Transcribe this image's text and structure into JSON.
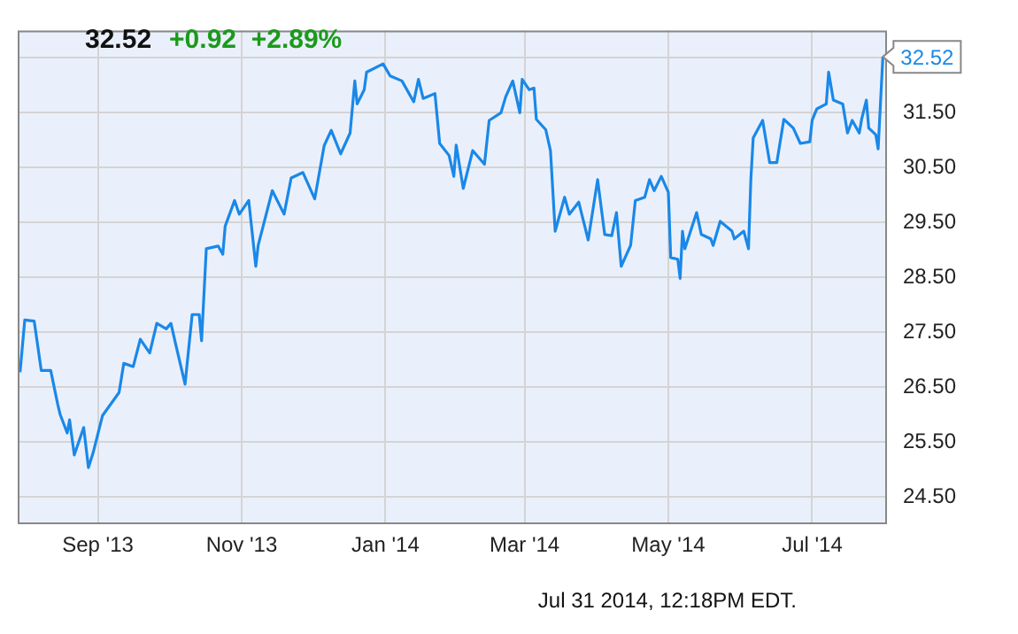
{
  "chart_data": {
    "type": "line",
    "title": "32.52",
    "subtitle": "+0.92  +2.89%",
    "x": [
      "2013-07-30",
      "2013-08-01",
      "2013-08-05",
      "2013-08-08",
      "2013-08-12",
      "2013-08-15",
      "2013-08-16",
      "2013-08-19",
      "2013-08-20",
      "2013-08-22",
      "2013-08-26",
      "2013-08-28",
      "2013-08-30",
      "2013-09-03",
      "2013-09-10",
      "2013-09-12",
      "2013-09-16",
      "2013-09-19",
      "2013-09-23",
      "2013-09-26",
      "2013-09-30",
      "2013-10-02",
      "2013-10-04",
      "2013-10-08",
      "2013-10-11",
      "2013-10-14",
      "2013-10-15",
      "2013-10-17",
      "2013-10-22",
      "2013-10-24",
      "2013-10-25",
      "2013-10-29",
      "2013-10-31",
      "2013-11-04",
      "2013-11-07",
      "2013-11-08",
      "2013-11-14",
      "2013-11-19",
      "2013-11-22",
      "2013-11-27",
      "2013-12-02",
      "2013-12-06",
      "2013-12-09",
      "2013-12-13",
      "2013-12-17",
      "2013-12-19",
      "2013-12-20",
      "2013-12-23",
      "2013-12-24",
      "2013-12-31",
      "2014-01-03",
      "2014-01-08",
      "2014-01-13",
      "2014-01-15",
      "2014-01-17",
      "2014-01-22",
      "2014-01-24",
      "2014-01-28",
      "2014-01-30",
      "2014-01-31",
      "2014-02-03",
      "2014-02-07",
      "2014-02-12",
      "2014-02-14",
      "2014-02-19",
      "2014-02-21",
      "2014-02-24",
      "2014-02-27",
      "2014-02-28",
      "2014-03-03",
      "2014-03-05",
      "2014-03-06",
      "2014-03-10",
      "2014-03-12",
      "2014-03-14",
      "2014-03-18",
      "2014-03-20",
      "2014-03-24",
      "2014-03-28",
      "2014-04-01",
      "2014-04-04",
      "2014-04-07",
      "2014-04-09",
      "2014-04-11",
      "2014-04-15",
      "2014-04-17",
      "2014-04-21",
      "2014-04-23",
      "2014-04-25",
      "2014-04-28",
      "2014-05-01",
      "2014-05-02",
      "2014-05-05",
      "2014-05-06",
      "2014-05-07",
      "2014-05-08",
      "2014-05-13",
      "2014-05-15",
      "2014-05-19",
      "2014-05-20",
      "2014-05-23",
      "2014-05-28",
      "2014-05-29",
      "2014-06-02",
      "2014-06-04",
      "2014-06-05",
      "2014-06-06",
      "2014-06-10",
      "2014-06-13",
      "2014-06-16",
      "2014-06-19",
      "2014-06-23",
      "2014-06-26",
      "2014-06-30",
      "2014-07-01",
      "2014-07-03",
      "2014-07-07",
      "2014-07-08",
      "2014-07-10",
      "2014-07-14",
      "2014-07-16",
      "2014-07-18",
      "2014-07-21",
      "2014-07-22",
      "2014-07-24",
      "2014-07-25",
      "2014-07-28",
      "2014-07-29",
      "2014-07-31"
    ],
    "series": [
      {
        "color": "#1a88e8",
        "values": [
          26.77,
          27.72,
          27.7,
          26.8,
          26.8,
          26.18,
          26.0,
          25.66,
          25.9,
          25.26,
          25.76,
          25.03,
          25.3,
          25.98,
          26.4,
          26.93,
          26.87,
          27.37,
          27.12,
          27.66,
          27.56,
          27.66,
          27.28,
          26.55,
          27.82,
          27.82,
          27.34,
          29.02,
          29.07,
          28.92,
          29.43,
          29.9,
          29.65,
          29.9,
          28.7,
          29.08,
          30.08,
          29.65,
          30.31,
          30.41,
          29.93,
          30.9,
          31.18,
          30.75,
          31.13,
          32.08,
          31.66,
          31.92,
          32.24,
          32.39,
          32.17,
          32.08,
          31.7,
          32.11,
          31.76,
          31.85,
          30.94,
          30.72,
          30.34,
          30.91,
          30.12,
          30.81,
          30.56,
          31.36,
          31.5,
          31.79,
          32.08,
          31.5,
          32.11,
          31.92,
          31.95,
          31.38,
          31.19,
          30.81,
          29.34,
          29.96,
          29.65,
          29.87,
          29.18,
          30.28,
          29.28,
          29.26,
          29.68,
          28.7,
          29.08,
          29.9,
          29.96,
          30.28,
          30.08,
          30.34,
          30.05,
          28.86,
          28.83,
          28.48,
          29.34,
          29.02,
          29.68,
          29.28,
          29.2,
          29.08,
          29.52,
          29.34,
          29.2,
          29.34,
          29.02,
          30.28,
          31.04,
          31.36,
          30.59,
          30.59,
          31.38,
          31.22,
          30.94,
          30.97,
          31.36,
          31.57,
          31.66,
          32.24,
          31.73,
          31.66,
          31.13,
          31.36,
          31.13,
          31.38,
          31.73,
          31.22,
          31.1,
          30.84,
          32.52
        ]
      }
    ],
    "xlim": [
      "2013-07-29",
      "2014-08-01"
    ],
    "xticks": [
      {
        "value": "2013-09-01",
        "label": "Sep '13"
      },
      {
        "value": "2013-11-01",
        "label": "Nov '13"
      },
      {
        "value": "2014-01-01",
        "label": "Jan '14"
      },
      {
        "value": "2014-03-01",
        "label": "Mar '14"
      },
      {
        "value": "2014-05-01",
        "label": "May '14"
      },
      {
        "value": "2014-07-01",
        "label": "Jul '14"
      }
    ],
    "ylim": [
      24.03,
      33.0
    ],
    "yticks": [
      {
        "value": 24.5,
        "label": "24.50"
      },
      {
        "value": 25.5,
        "label": "25.50"
      },
      {
        "value": 26.5,
        "label": "26.50"
      },
      {
        "value": 27.5,
        "label": "27.50"
      },
      {
        "value": 28.5,
        "label": "28.50"
      },
      {
        "value": 29.5,
        "label": "29.50"
      },
      {
        "value": 30.5,
        "label": "30.50"
      },
      {
        "value": 31.5,
        "label": "31.50"
      },
      {
        "value": 32.5,
        "label": null
      }
    ],
    "grid": true,
    "legend": false,
    "marker": "none",
    "line_style": "solid",
    "annotations": [
      {
        "text": "32.52",
        "x": "2014-07-31",
        "y": 32.52
      },
      "Jul 31 2014, 12:18PM EDT."
    ]
  }
}
